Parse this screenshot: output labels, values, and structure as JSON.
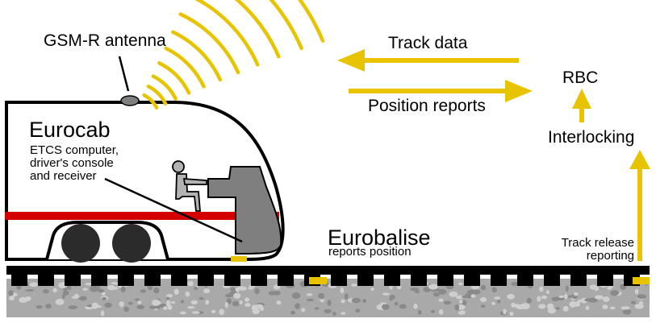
{
  "labels": {
    "gsmr_antenna": "GSM-R antenna",
    "track_data": "Track data",
    "position_reports": "Position reports",
    "rbc": "RBC",
    "interlocking": "Interlocking",
    "eurocab": "Eurocab",
    "eurocab_desc": [
      "ETCS computer,",
      "driver's console",
      "and receiver"
    ],
    "eurobalise": "Eurobalise",
    "eurobalise_desc": "reports position",
    "track_release": [
      "Track release",
      "reporting"
    ]
  },
  "colors": {
    "signal_yellow": "#e8c400",
    "stripe_red": "#d40000",
    "cab_gray": "#7f7f7f",
    "wheel_dark": "#2b2b2b",
    "ballast_gray": "#b3b3b3"
  },
  "icons": {
    "radio_waves": "radio-waves-icon",
    "driver": "driver-figure-icon"
  }
}
